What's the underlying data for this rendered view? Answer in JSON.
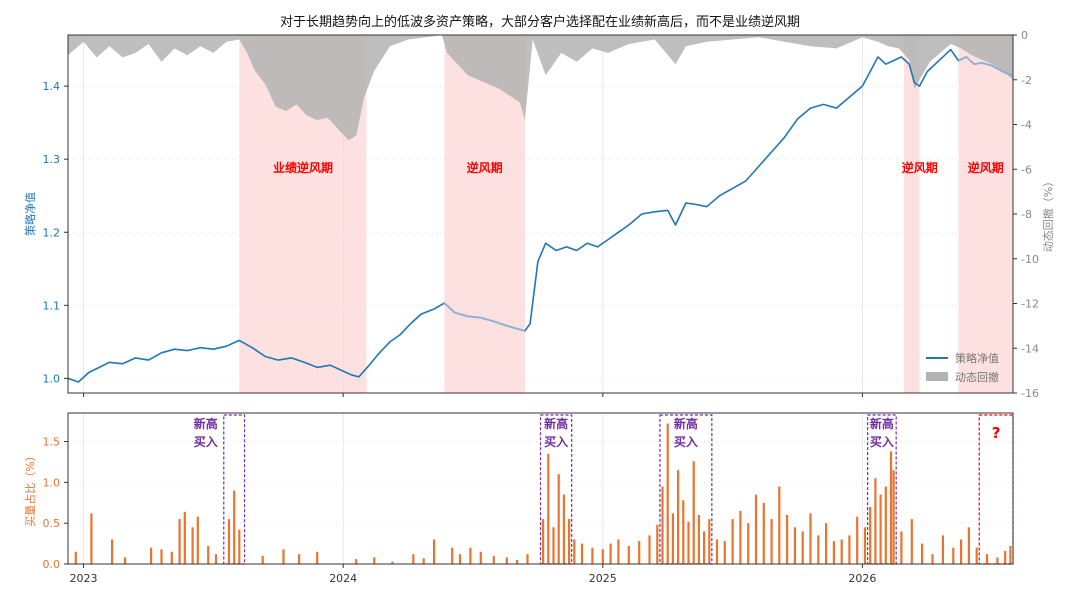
{
  "title": "对于长期趋势向上的低波多资产策略，大部分客户选择配在业绩新高后，而不是业绩逆风期",
  "colors": {
    "nav_line": "#1f77b4",
    "nav_faded": "#8fb3d4",
    "drawdown_fill": "#b3b3b3",
    "headwind_shade": "#fde0e0",
    "volume_bar": "#e8742f",
    "buy_box": "#7030a0",
    "question_box": "#ff0000",
    "headwind_text": "#ff0000"
  },
  "legend": {
    "position": "bottom-right",
    "items": [
      {
        "label": "策略净值",
        "kind": "line",
        "color": "#1f77b4"
      },
      {
        "label": "动态回撤",
        "kind": "patch",
        "color": "#b3b3b3"
      }
    ]
  },
  "headwind_periods": [
    {
      "label": "业绩逆风期",
      "start": 2023.6,
      "end": 2024.09
    },
    {
      "label": "逆风期",
      "start": 2024.39,
      "end": 2024.7
    },
    {
      "label": "逆风期",
      "start": 2026.16,
      "end": 2026.22
    },
    {
      "label": "逆风期",
      "start": 2026.37,
      "end": 2026.58
    }
  ],
  "buy_boxes": [
    {
      "label_line1": "新高",
      "label_line2": "买入",
      "start": 2023.54,
      "end": 2023.62
    },
    {
      "label_line1": "新高",
      "label_line2": "买入",
      "start": 2024.76,
      "end": 2024.88
    },
    {
      "label_line1": "新高",
      "label_line2": "买入",
      "start": 2025.22,
      "end": 2025.42
    },
    {
      "label_line1": "新高",
      "label_line2": "买入",
      "start": 2026.02,
      "end": 2026.13
    }
  ],
  "question_box": {
    "label": "?",
    "start": 2026.45,
    "end": 2026.58
  },
  "chart_data": [
    {
      "type": "line",
      "panel": "top",
      "xlim": [
        2022.94,
        2026.58
      ],
      "ylabel": "策略净值",
      "ylim": [
        0.98,
        1.47
      ],
      "yticks": [
        1.0,
        1.1,
        1.2,
        1.3,
        1.4
      ],
      "y2label": "动态回撤（%）",
      "y2lim": [
        -16,
        0
      ],
      "y2ticks": [
        0,
        -2,
        -4,
        -6,
        -8,
        -10,
        -12,
        -14,
        -16
      ],
      "grid": true,
      "series": [
        {
          "name": "策略净值",
          "x": [
            2022.94,
            2022.98,
            2023.02,
            2023.06,
            2023.1,
            2023.15,
            2023.2,
            2023.25,
            2023.3,
            2023.35,
            2023.4,
            2023.45,
            2023.5,
            2023.55,
            2023.6,
            2023.65,
            2023.7,
            2023.75,
            2023.8,
            2023.85,
            2023.9,
            2023.95,
            2024.0,
            2024.03,
            2024.06,
            2024.1,
            2024.14,
            2024.18,
            2024.22,
            2024.26,
            2024.3,
            2024.35,
            2024.39,
            2024.43,
            2024.48,
            2024.53,
            2024.58,
            2024.63,
            2024.67,
            2024.7,
            2024.72,
            2024.75,
            2024.78,
            2024.82,
            2024.86,
            2024.9,
            2024.94,
            2024.98,
            2025.02,
            2025.06,
            2025.1,
            2025.15,
            2025.2,
            2025.25,
            2025.28,
            2025.32,
            2025.36,
            2025.4,
            2025.45,
            2025.5,
            2025.55,
            2025.6,
            2025.65,
            2025.7,
            2025.75,
            2025.8,
            2025.85,
            2025.9,
            2025.95,
            2026.0,
            2026.03,
            2026.06,
            2026.09,
            2026.12,
            2026.15,
            2026.18,
            2026.2,
            2026.22,
            2026.25,
            2026.28,
            2026.31,
            2026.34,
            2026.37,
            2026.4,
            2026.43,
            2026.46,
            2026.5,
            2026.54,
            2026.58
          ],
          "y": [
            1.0,
            0.995,
            1.008,
            1.015,
            1.022,
            1.02,
            1.028,
            1.025,
            1.035,
            1.04,
            1.038,
            1.042,
            1.04,
            1.044,
            1.052,
            1.042,
            1.03,
            1.025,
            1.028,
            1.022,
            1.015,
            1.018,
            1.01,
            1.005,
            1.002,
            1.018,
            1.035,
            1.05,
            1.06,
            1.075,
            1.088,
            1.095,
            1.103,
            1.09,
            1.085,
            1.083,
            1.078,
            1.072,
            1.068,
            1.065,
            1.075,
            1.16,
            1.185,
            1.175,
            1.18,
            1.175,
            1.185,
            1.18,
            1.19,
            1.2,
            1.21,
            1.225,
            1.228,
            1.23,
            1.21,
            1.24,
            1.238,
            1.235,
            1.25,
            1.26,
            1.27,
            1.29,
            1.31,
            1.33,
            1.355,
            1.37,
            1.375,
            1.37,
            1.385,
            1.4,
            1.42,
            1.44,
            1.43,
            1.435,
            1.44,
            1.43,
            1.405,
            1.4,
            1.42,
            1.43,
            1.44,
            1.45,
            1.435,
            1.44,
            1.43,
            1.432,
            1.428,
            1.42,
            1.414
          ]
        },
        {
          "name": "动态回撤",
          "type": "area",
          "x": [
            2022.94,
            2023.0,
            2023.05,
            2023.1,
            2023.15,
            2023.2,
            2023.25,
            2023.3,
            2023.35,
            2023.4,
            2023.45,
            2023.5,
            2023.55,
            2023.6,
            2023.63,
            2023.66,
            2023.7,
            2023.74,
            2023.78,
            2023.82,
            2023.86,
            2023.9,
            2023.94,
            2023.98,
            2024.02,
            2024.05,
            2024.08,
            2024.12,
            2024.18,
            2024.25,
            2024.32,
            2024.38,
            2024.4,
            2024.44,
            2024.48,
            2024.52,
            2024.56,
            2024.6,
            2024.64,
            2024.68,
            2024.7,
            2024.73,
            2024.78,
            2024.84,
            2024.9,
            2024.96,
            2025.02,
            2025.1,
            2025.2,
            2025.28,
            2025.32,
            2025.4,
            2025.5,
            2025.6,
            2025.7,
            2025.8,
            2025.9,
            2026.0,
            2026.06,
            2026.1,
            2026.14,
            2026.18,
            2026.2,
            2026.22,
            2026.26,
            2026.3,
            2026.34,
            2026.38,
            2026.42,
            2026.46,
            2026.5,
            2026.54,
            2026.58
          ],
          "y": [
            -0.9,
            -0.3,
            -1.0,
            -0.5,
            -1.0,
            -0.8,
            -0.4,
            -1.2,
            -0.6,
            -0.9,
            -0.5,
            -0.8,
            -0.3,
            -0.2,
            -0.8,
            -1.6,
            -2.2,
            -3.2,
            -3.4,
            -3.1,
            -3.6,
            -3.8,
            -3.7,
            -4.2,
            -4.7,
            -4.5,
            -2.8,
            -1.6,
            -0.5,
            -0.2,
            -0.1,
            0.0,
            -0.8,
            -1.3,
            -1.8,
            -2.0,
            -2.2,
            -2.4,
            -2.7,
            -3.0,
            -3.8,
            -0.2,
            -1.8,
            -0.8,
            -1.2,
            -0.6,
            -0.8,
            -0.4,
            -0.2,
            -1.3,
            -0.5,
            -0.3,
            -0.2,
            -0.1,
            -0.3,
            -0.5,
            -0.6,
            -0.1,
            -0.3,
            -0.5,
            -0.6,
            -1.1,
            -2.4,
            -2.0,
            -1.2,
            -0.8,
            -0.4,
            -0.6,
            -0.9,
            -1.1,
            -1.3,
            -1.6,
            -2.0
          ]
        }
      ]
    },
    {
      "type": "bar",
      "panel": "bottom",
      "ylabel": "买量占比（%）",
      "xlim": [
        2022.94,
        2026.58
      ],
      "ylim": [
        0,
        1.85
      ],
      "yticks": [
        0.0,
        0.5,
        1.0,
        1.5
      ],
      "xticks": [
        "2023",
        "2024",
        "2025",
        "2026"
      ],
      "xtick_values": [
        2023,
        2024,
        2025,
        2026
      ],
      "grid": true,
      "bars": {
        "x": [
          2022.97,
          2023.03,
          2023.11,
          2023.16,
          2023.26,
          2023.3,
          2023.34,
          2023.37,
          2023.39,
          2023.42,
          2023.44,
          2023.48,
          2023.51,
          2023.56,
          2023.58,
          2023.6,
          2023.69,
          2023.77,
          2023.83,
          2023.9,
          2024.05,
          2024.12,
          2024.19,
          2024.27,
          2024.31,
          2024.35,
          2024.42,
          2024.45,
          2024.49,
          2024.53,
          2024.58,
          2024.63,
          2024.67,
          2024.71,
          2024.77,
          2024.79,
          2024.81,
          2024.83,
          2024.85,
          2024.87,
          2024.89,
          2024.92,
          2024.96,
          2025.0,
          2025.03,
          2025.06,
          2025.1,
          2025.14,
          2025.18,
          2025.21,
          2025.23,
          2025.25,
          2025.27,
          2025.29,
          2025.31,
          2025.33,
          2025.35,
          2025.37,
          2025.39,
          2025.41,
          2025.44,
          2025.47,
          2025.5,
          2025.53,
          2025.56,
          2025.59,
          2025.62,
          2025.65,
          2025.68,
          2025.71,
          2025.74,
          2025.77,
          2025.8,
          2025.83,
          2025.86,
          2025.89,
          2025.92,
          2025.95,
          2025.98,
          2026.01,
          2026.03,
          2026.05,
          2026.07,
          2026.09,
          2026.11,
          2026.12,
          2026.15,
          2026.19,
          2026.23,
          2026.27,
          2026.31,
          2026.35,
          2026.38,
          2026.41,
          2026.44,
          2026.48,
          2026.52,
          2026.55,
          2026.57
        ],
        "y": [
          0.15,
          0.62,
          0.3,
          0.08,
          0.2,
          0.18,
          0.15,
          0.55,
          0.64,
          0.45,
          0.58,
          0.22,
          0.12,
          0.55,
          0.9,
          0.42,
          0.1,
          0.18,
          0.12,
          0.15,
          0.06,
          0.08,
          0.03,
          0.12,
          0.07,
          0.3,
          0.2,
          0.12,
          0.2,
          0.15,
          0.1,
          0.08,
          0.05,
          0.12,
          0.55,
          1.35,
          0.45,
          1.1,
          0.85,
          0.55,
          0.3,
          0.25,
          0.2,
          0.18,
          0.25,
          0.3,
          0.22,
          0.28,
          0.35,
          0.48,
          0.95,
          1.72,
          0.62,
          1.15,
          0.78,
          0.52,
          1.26,
          0.6,
          0.4,
          0.55,
          0.3,
          0.28,
          0.55,
          0.65,
          0.5,
          0.85,
          0.75,
          0.55,
          0.95,
          0.6,
          0.45,
          0.4,
          0.62,
          0.35,
          0.5,
          0.28,
          0.3,
          0.35,
          0.58,
          0.45,
          0.7,
          1.05,
          0.85,
          0.95,
          1.38,
          1.15,
          0.4,
          0.55,
          0.25,
          0.12,
          0.35,
          0.2,
          0.3,
          0.45,
          0.2,
          0.12,
          0.08,
          0.16,
          0.22
        ]
      }
    }
  ]
}
